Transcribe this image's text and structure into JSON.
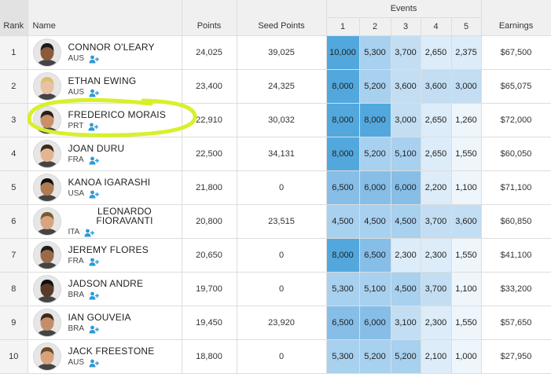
{
  "headers": {
    "rank": "Rank",
    "name": "Name",
    "points": "Points",
    "seed_points": "Seed Points",
    "events": "Events",
    "event_nums": [
      "1",
      "2",
      "3",
      "4",
      "5"
    ],
    "earnings": "Earnings"
  },
  "colors": {
    "highlight": "#d8f02a",
    "event_scale": [
      "#eef6fc",
      "#dcecf8",
      "#c3def2",
      "#a8d0ef",
      "#86bee8",
      "#52a8dd"
    ],
    "follow_icon": "#2f9ad8"
  },
  "rows": [
    {
      "rank": "1",
      "name": "CONNOR O'LEARY",
      "country": "AUS",
      "points": "24,025",
      "seed": "39,025",
      "events": [
        "10,000",
        "5,300",
        "3,700",
        "2,650",
        "2,375"
      ],
      "earnings": "$67,500"
    },
    {
      "rank": "2",
      "name": "ETHAN EWING",
      "country": "AUS",
      "points": "23,400",
      "seed": "24,325",
      "events": [
        "8,000",
        "5,200",
        "3,600",
        "3,600",
        "3,000"
      ],
      "earnings": "$65,075"
    },
    {
      "rank": "3",
      "name": "FREDERICO MORAIS",
      "country": "PRT",
      "points": "22,910",
      "seed": "30,032",
      "events": [
        "8,000",
        "8,000",
        "3,000",
        "2,650",
        "1,260"
      ],
      "earnings": "$72,000",
      "highlighted": true
    },
    {
      "rank": "4",
      "name": "JOAN DURU",
      "country": "FRA",
      "points": "22,500",
      "seed": "34,131",
      "events": [
        "8,000",
        "5,200",
        "5,100",
        "2,650",
        "1,550"
      ],
      "earnings": "$60,050"
    },
    {
      "rank": "5",
      "name": "KANOA IGARASHI",
      "country": "USA",
      "points": "21,800",
      "seed": "0",
      "events": [
        "6,500",
        "6,000",
        "6,000",
        "2,200",
        "1,100"
      ],
      "earnings": "$71,100"
    },
    {
      "rank": "6",
      "name": "LEONARDO FIORAVANTI",
      "country": "ITA",
      "points": "20,800",
      "seed": "23,515",
      "events": [
        "4,500",
        "4,500",
        "4,500",
        "3,700",
        "3,600"
      ],
      "earnings": "$60,850"
    },
    {
      "rank": "7",
      "name": "JEREMY FLORES",
      "country": "FRA",
      "points": "20,650",
      "seed": "0",
      "events": [
        "8,000",
        "6,500",
        "2,300",
        "2,300",
        "1,550"
      ],
      "earnings": "$41,100"
    },
    {
      "rank": "8",
      "name": "JADSON ANDRE",
      "country": "BRA",
      "points": "19,700",
      "seed": "0",
      "events": [
        "5,300",
        "5,100",
        "4,500",
        "3,700",
        "1,100"
      ],
      "earnings": "$33,200"
    },
    {
      "rank": "9",
      "name": "IAN GOUVEIA",
      "country": "BRA",
      "points": "19,450",
      "seed": "23,920",
      "events": [
        "6,500",
        "6,000",
        "3,100",
        "2,300",
        "1,550"
      ],
      "earnings": "$57,650"
    },
    {
      "rank": "10",
      "name": "JACK FREESTONE",
      "country": "AUS",
      "points": "18,800",
      "seed": "0",
      "events": [
        "5,300",
        "5,200",
        "5,200",
        "2,100",
        "1,000"
      ],
      "earnings": "$27,950"
    }
  ]
}
